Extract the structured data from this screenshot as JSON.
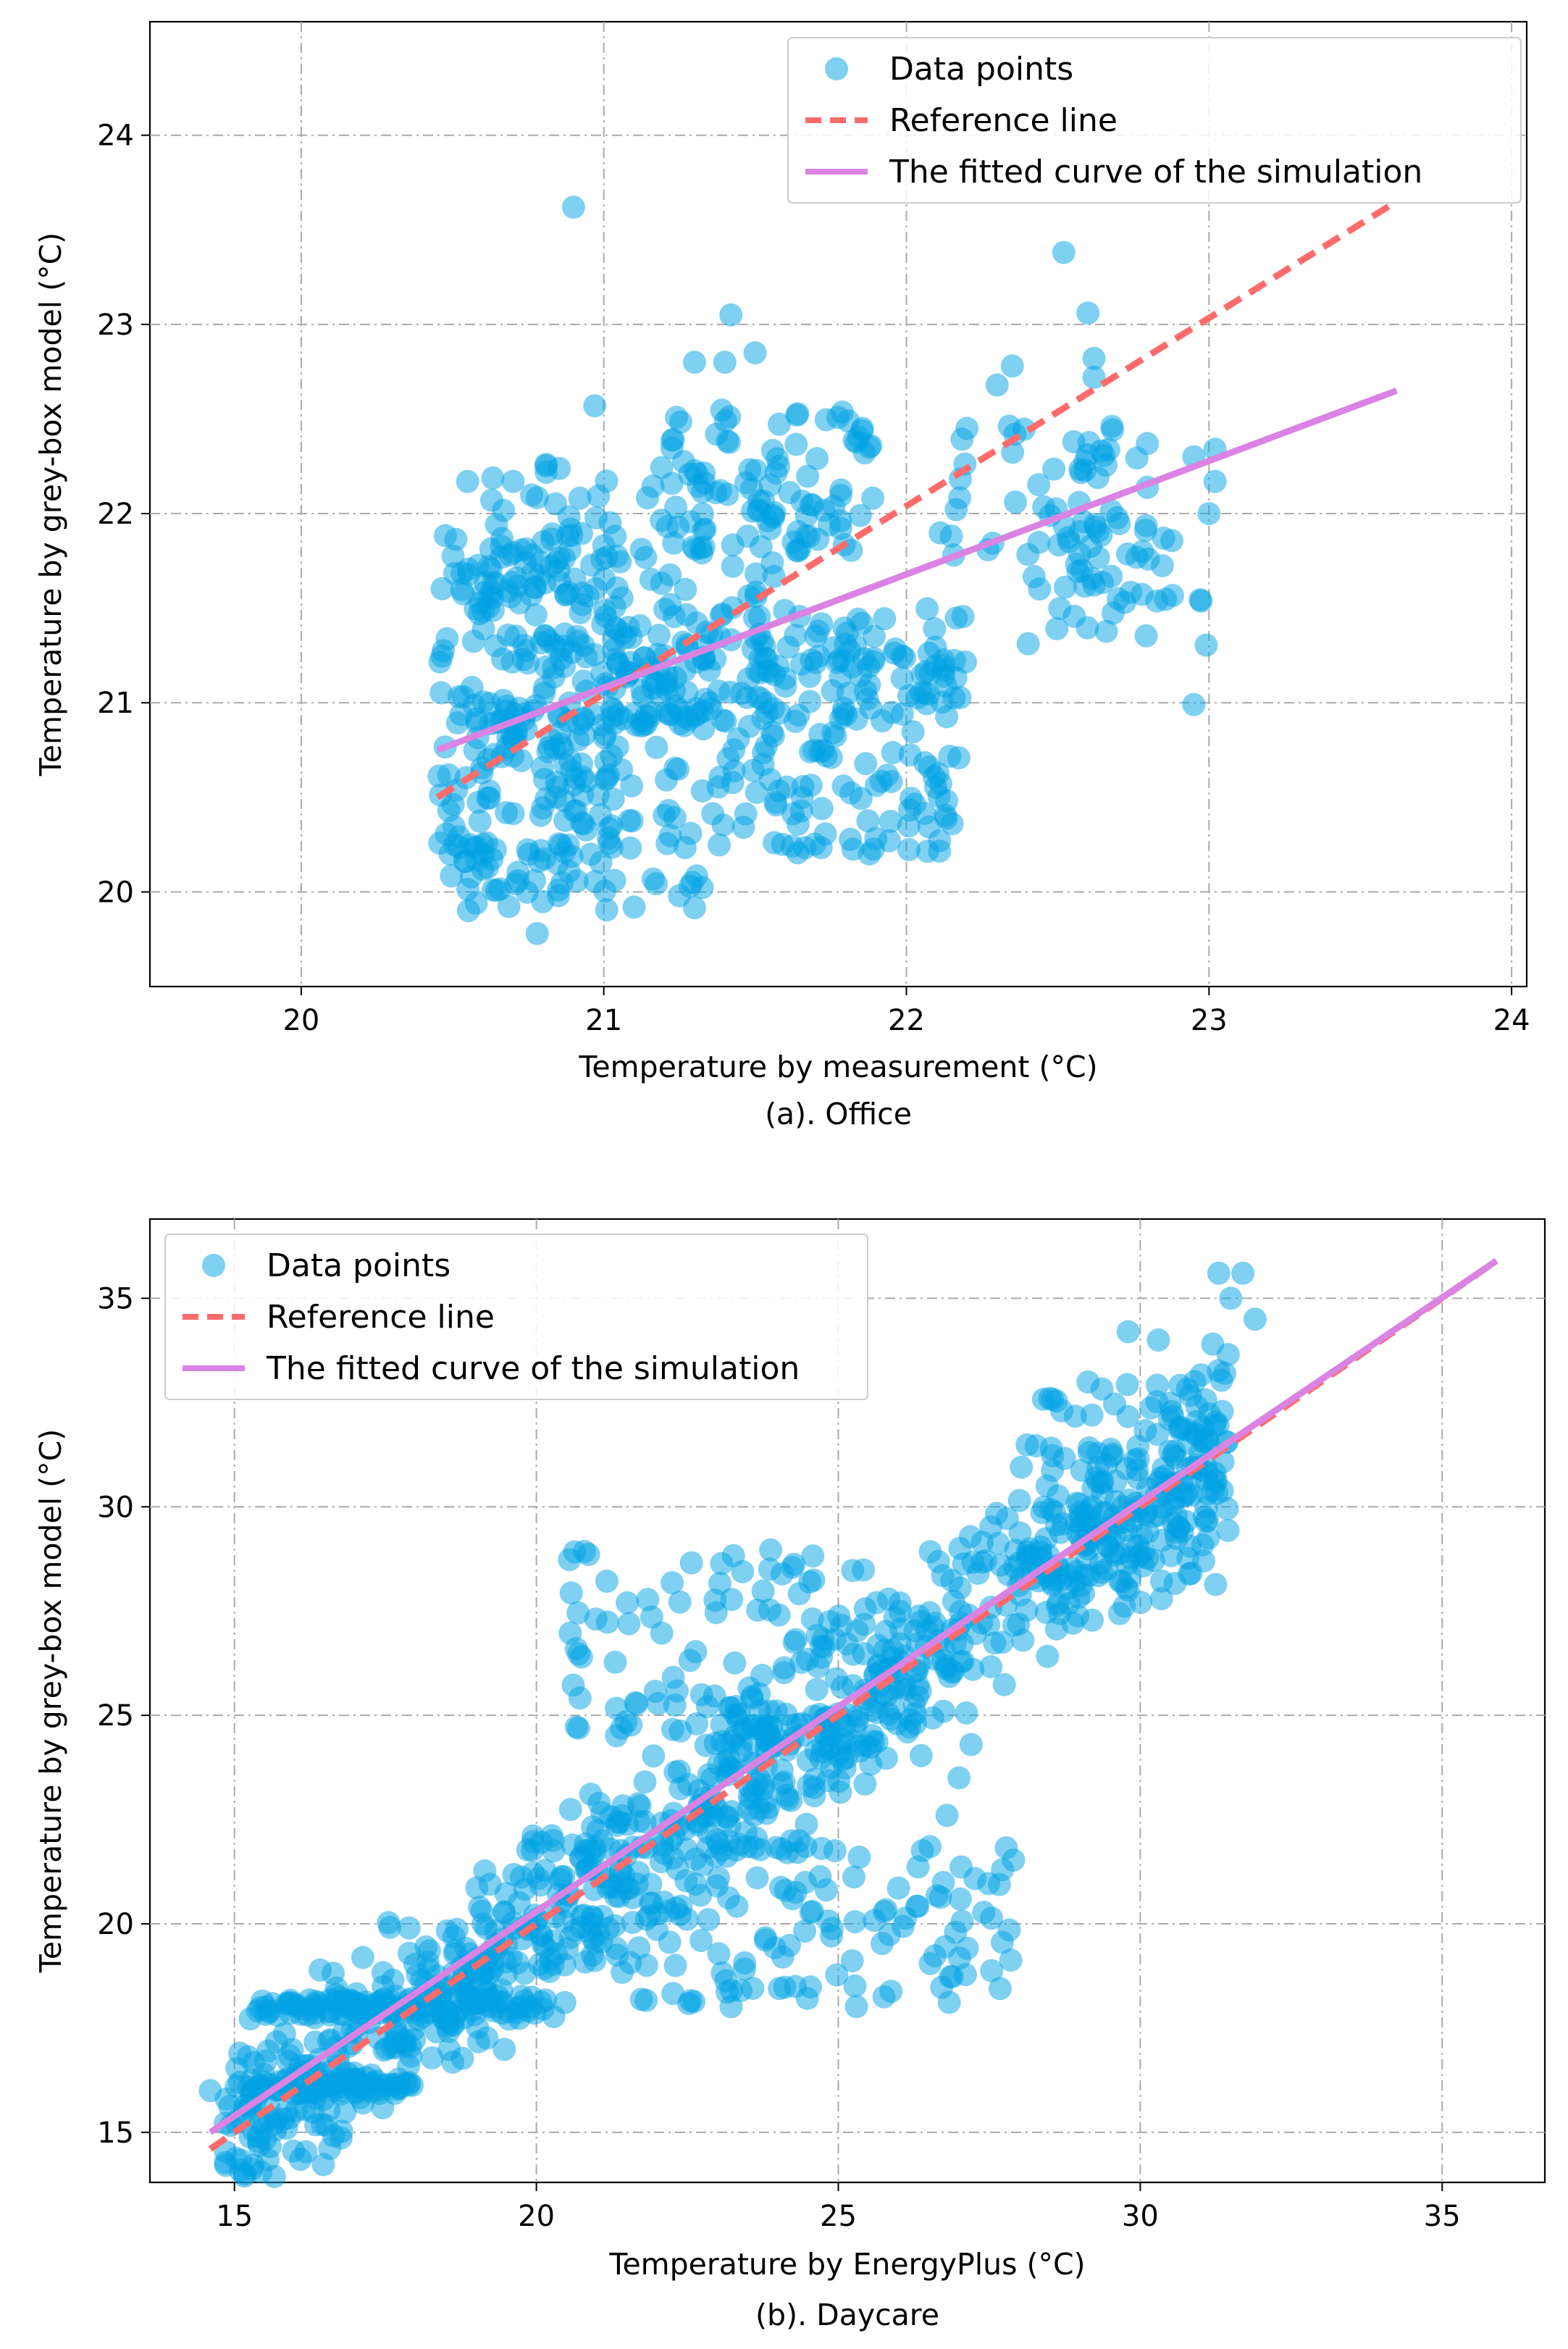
{
  "colors": {
    "points": "#00a2e3",
    "reference": "#ff6b6b",
    "fit": "#da83e3",
    "grid": "#aaaaaa"
  },
  "chart_data": [
    {
      "type": "scatter",
      "caption": "(a). Office",
      "xlabel": "Temperature by measurement (°C)",
      "ylabel": "Temperature by grey-box model (°C)",
      "xlim": [
        19.5,
        24.05
      ],
      "ylim": [
        19.5,
        24.6
      ],
      "xticks": [
        "20",
        "21",
        "22",
        "23",
        "24"
      ],
      "yticks": [
        "20",
        "21",
        "22",
        "23",
        "24"
      ],
      "grid": true,
      "legend_position": "top-right",
      "legend": [
        {
          "key": "points",
          "label": "Data points"
        },
        {
          "key": "reference",
          "label": "Reference line"
        },
        {
          "key": "fit",
          "label": "The fitted curve of the simulation"
        }
      ],
      "reference_line": {
        "x": [
          20.45,
          23.62
        ],
        "y": [
          20.5,
          23.65
        ]
      },
      "fitted_curve": {
        "x": [
          20.45,
          23.62
        ],
        "y": [
          20.75,
          22.65
        ]
      },
      "clusters": [
        {
          "x": [
            20.45,
            21.05
          ],
          "y": [
            20.0,
            21.9
          ],
          "n": 240
        },
        {
          "x": [
            21.0,
            22.2
          ],
          "y": [
            20.2,
            21.5
          ],
          "n": 220
        },
        {
          "x": [
            20.6,
            21.6
          ],
          "y": [
            20.8,
            22.3
          ],
          "n": 120
        },
        {
          "x": [
            21.2,
            21.9
          ],
          "y": [
            21.8,
            22.55
          ],
          "n": 90
        },
        {
          "x": [
            22.1,
            22.8
          ],
          "y": [
            21.6,
            22.55
          ],
          "n": 60
        },
        {
          "x": [
            22.4,
            23.0
          ],
          "y": [
            21.3,
            22.0
          ],
          "n": 30
        },
        {
          "x": [
            20.45,
            21.4
          ],
          "y": [
            19.9,
            20.3
          ],
          "n": 25
        },
        {
          "x": [
            21.0,
            22.2
          ],
          "y": [
            20.9,
            21.25
          ],
          "n": 60
        }
      ],
      "points_highlight": [
        [
          20.9,
          23.62
        ],
        [
          21.42,
          23.05
        ],
        [
          22.52,
          23.38
        ],
        [
          22.6,
          23.06
        ],
        [
          21.5,
          22.85
        ],
        [
          22.62,
          22.82
        ],
        [
          22.62,
          22.72
        ],
        [
          22.95,
          22.3
        ],
        [
          23.02,
          22.34
        ],
        [
          23.02,
          22.17
        ],
        [
          22.95,
          20.99
        ],
        [
          20.78,
          19.78
        ],
        [
          20.97,
          22.57
        ],
        [
          21.3,
          22.8
        ],
        [
          21.4,
          22.8
        ],
        [
          20.55,
          22.17
        ],
        [
          20.7,
          22.17
        ],
        [
          22.2,
          22.45
        ],
        [
          22.3,
          22.68
        ],
        [
          22.35,
          22.78
        ],
        [
          22.58,
          21.7
        ],
        [
          22.78,
          21.8
        ],
        [
          22.7,
          21.55
        ],
        [
          22.85,
          21.87
        ],
        [
          23.0,
          22.0
        ],
        [
          20.6,
          20.12
        ],
        [
          20.85,
          19.98
        ],
        [
          21.1,
          19.92
        ],
        [
          21.25,
          19.98
        ]
      ]
    },
    {
      "type": "scatter",
      "caption": "(b). Daycare",
      "xlabel": "Temperature by EnergyPlus (°C)",
      "ylabel": "Temperature by grey-box model (°C)",
      "xlim": [
        13.6,
        36.7
      ],
      "ylim": [
        13.8,
        36.9
      ],
      "xticks": [
        "15",
        "20",
        "25",
        "30",
        "35"
      ],
      "yticks": [
        "15",
        "20",
        "25",
        "30",
        "35"
      ],
      "grid": true,
      "legend_position": "top-left",
      "legend": [
        {
          "key": "points",
          "label": "Data points"
        },
        {
          "key": "reference",
          "label": "Reference line"
        },
        {
          "key": "fit",
          "label": "The fitted curve of the simulation"
        }
      ],
      "reference_line": {
        "x": [
          14.6,
          35.9
        ],
        "y": [
          14.6,
          35.9
        ]
      },
      "fitted_curve": {
        "x": [
          14.6,
          35.9
        ],
        "y": [
          15.0,
          35.9
        ]
      },
      "band": {
        "x0": 14.8,
        "x1": 31.5,
        "center_offset": 0.0,
        "spread": 1.7,
        "n": 900
      },
      "clusters": [
        {
          "x": [
            15.2,
            18.0
          ],
          "y": [
            15.9,
            16.3
          ],
          "n": 70
        },
        {
          "x": [
            15.3,
            17.8
          ],
          "y": [
            17.8,
            18.2
          ],
          "n": 60
        },
        {
          "x": [
            18.0,
            20.0
          ],
          "y": [
            17.7,
            18.3
          ],
          "n": 40
        },
        {
          "x": [
            20.0,
            28.0
          ],
          "y": [
            18.0,
            22.0
          ],
          "n": 150
        },
        {
          "x": [
            20.5,
            26.0
          ],
          "y": [
            24.0,
            29.0
          ],
          "n": 100
        },
        {
          "x": [
            28.0,
            31.3
          ],
          "y": [
            27.5,
            33.0
          ],
          "n": 70
        }
      ],
      "points_highlight": [
        [
          31.3,
          35.6
        ],
        [
          31.7,
          35.6
        ],
        [
          31.5,
          35.0
        ],
        [
          31.9,
          34.5
        ],
        [
          30.3,
          34.0
        ],
        [
          29.8,
          34.2
        ],
        [
          31.2,
          33.9
        ],
        [
          31.4,
          33.2
        ],
        [
          30.9,
          33.0
        ],
        [
          29.2,
          32.2
        ],
        [
          29.3,
          30.6
        ],
        [
          29.8,
          28.0
        ],
        [
          26.8,
          22.6
        ],
        [
          27.0,
          23.5
        ],
        [
          27.2,
          24.3
        ],
        [
          14.6,
          16.0
        ],
        [
          28.5,
          32.6
        ],
        [
          28.7,
          32.3
        ]
      ]
    }
  ]
}
